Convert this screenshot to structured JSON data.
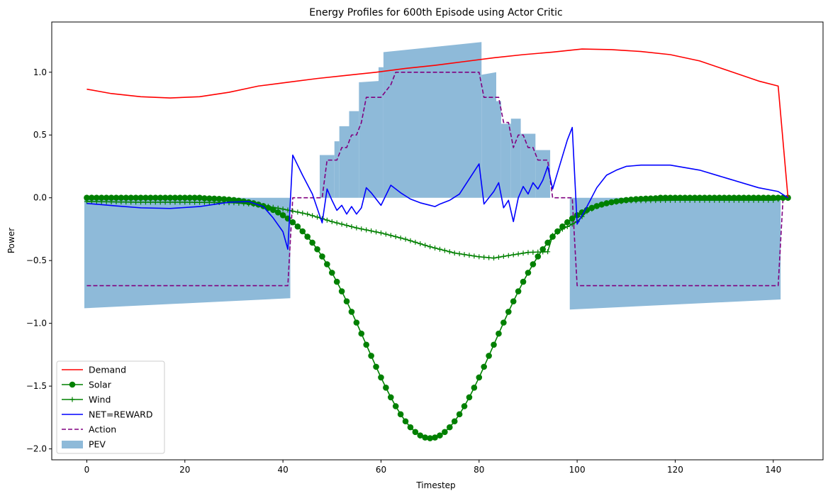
{
  "chart_data": {
    "type": "line",
    "title": "Energy Profiles for 600th Episode using Actor Critic",
    "xlabel": "Timestep",
    "ylabel": "Power",
    "xlim": [
      -7.15,
      150.15
    ],
    "ylim": [
      -2.087,
      1.4
    ],
    "xticks": [
      0,
      20,
      40,
      60,
      80,
      100,
      120,
      140
    ],
    "yticks": [
      -2.0,
      -1.5,
      -1.0,
      -0.5,
      0.0,
      0.5,
      1.0
    ],
    "ytick_labels": [
      "−2.0",
      "−1.5",
      "−1.0",
      "−0.5",
      "0.0",
      "0.5",
      "1.0"
    ],
    "grid": false,
    "legend_position": "lower-left",
    "legend": [
      "Demand",
      "Solar",
      "Wind",
      "NET=REWARD",
      "Action",
      "PEV"
    ],
    "colors": {
      "demand": "#ff0000",
      "solar": "#008000",
      "wind": "#008000",
      "net": "#0000ff",
      "action": "#800080",
      "pev": "#8ebad9"
    },
    "series": [
      {
        "name": "Demand",
        "style": "line",
        "points": [
          [
            0,
            0.865
          ],
          [
            5,
            0.83
          ],
          [
            11,
            0.805
          ],
          [
            17,
            0.795
          ],
          [
            23,
            0.805
          ],
          [
            29,
            0.84
          ],
          [
            35,
            0.89
          ],
          [
            41,
            0.92
          ],
          [
            47,
            0.95
          ],
          [
            53,
            0.975
          ],
          [
            59,
            1.0
          ],
          [
            65,
            1.03
          ],
          [
            71,
            1.055
          ],
          [
            77,
            1.085
          ],
          [
            83,
            1.115
          ],
          [
            89,
            1.14
          ],
          [
            95,
            1.16
          ],
          [
            101,
            1.185
          ],
          [
            107,
            1.18
          ],
          [
            113,
            1.165
          ],
          [
            119,
            1.14
          ],
          [
            125,
            1.09
          ],
          [
            131,
            1.01
          ],
          [
            137,
            0.93
          ],
          [
            141,
            0.89
          ],
          [
            143,
            0.0
          ]
        ]
      },
      {
        "name": "Solar",
        "style": "line-circle",
        "shape": "gaussian",
        "peak_t": 70,
        "peak_value": -1.915,
        "sigma": 13.1,
        "t_start": 0,
        "t_end": 143
      },
      {
        "name": "Wind",
        "style": "line-plus",
        "points": [
          [
            0,
            -0.03
          ],
          [
            10,
            -0.035
          ],
          [
            20,
            -0.035
          ],
          [
            30,
            -0.04
          ],
          [
            35,
            -0.055
          ],
          [
            40,
            -0.09
          ],
          [
            45,
            -0.13
          ],
          [
            50,
            -0.19
          ],
          [
            55,
            -0.24
          ],
          [
            60,
            -0.28
          ],
          [
            65,
            -0.33
          ],
          [
            70,
            -0.39
          ],
          [
            75,
            -0.44
          ],
          [
            80,
            -0.47
          ],
          [
            83,
            -0.48
          ],
          [
            86,
            -0.46
          ],
          [
            90,
            -0.435
          ],
          [
            94,
            -0.43
          ],
          [
            95,
            -0.3
          ],
          [
            97,
            -0.25
          ],
          [
            100,
            -0.19
          ],
          [
            102,
            -0.11
          ],
          [
            105,
            -0.05
          ],
          [
            110,
            -0.025
          ],
          [
            120,
            -0.02
          ],
          [
            130,
            -0.02
          ],
          [
            140,
            -0.02
          ],
          [
            143,
            0.0
          ]
        ]
      },
      {
        "name": "NET=REWARD",
        "style": "line",
        "points": [
          [
            0,
            -0.045
          ],
          [
            6,
            -0.065
          ],
          [
            11,
            -0.08
          ],
          [
            17,
            -0.085
          ],
          [
            23,
            -0.07
          ],
          [
            29,
            -0.035
          ],
          [
            33,
            -0.03
          ],
          [
            36,
            -0.07
          ],
          [
            38,
            -0.16
          ],
          [
            40,
            -0.27
          ],
          [
            41,
            -0.41
          ],
          [
            42,
            0.34
          ],
          [
            44,
            0.18
          ],
          [
            46,
            0.03
          ],
          [
            48,
            -0.2
          ],
          [
            49,
            0.07
          ],
          [
            50,
            -0.02
          ],
          [
            51,
            -0.1
          ],
          [
            52,
            -0.06
          ],
          [
            53,
            -0.13
          ],
          [
            54,
            -0.07
          ],
          [
            55,
            -0.13
          ],
          [
            56,
            -0.08
          ],
          [
            57,
            0.08
          ],
          [
            58,
            0.04
          ],
          [
            60,
            -0.06
          ],
          [
            62,
            0.1
          ],
          [
            64,
            0.04
          ],
          [
            66,
            -0.01
          ],
          [
            68,
            -0.04
          ],
          [
            70,
            -0.06
          ],
          [
            71,
            -0.07
          ],
          [
            72,
            -0.05
          ],
          [
            74,
            -0.02
          ],
          [
            76,
            0.03
          ],
          [
            78,
            0.15
          ],
          [
            80,
            0.27
          ],
          [
            81,
            -0.05
          ],
          [
            83,
            0.05
          ],
          [
            84,
            0.12
          ],
          [
            85,
            -0.08
          ],
          [
            86,
            -0.02
          ],
          [
            87,
            -0.19
          ],
          [
            88,
            0.0
          ],
          [
            89,
            0.09
          ],
          [
            90,
            0.03
          ],
          [
            91,
            0.12
          ],
          [
            92,
            0.07
          ],
          [
            93,
            0.14
          ],
          [
            94,
            0.25
          ],
          [
            95,
            0.07
          ],
          [
            96,
            0.2
          ],
          [
            97,
            0.33
          ],
          [
            98,
            0.46
          ],
          [
            99,
            0.56
          ],
          [
            100,
            -0.21
          ],
          [
            102,
            -0.07
          ],
          [
            104,
            0.08
          ],
          [
            106,
            0.18
          ],
          [
            108,
            0.22
          ],
          [
            110,
            0.25
          ],
          [
            113,
            0.26
          ],
          [
            119,
            0.26
          ],
          [
            125,
            0.22
          ],
          [
            131,
            0.15
          ],
          [
            137,
            0.08
          ],
          [
            141,
            0.05
          ],
          [
            143,
            0.0
          ]
        ]
      },
      {
        "name": "Action",
        "style": "dashed",
        "points": [
          [
            0,
            -0.7
          ],
          [
            41,
            -0.7
          ],
          [
            42,
            0.0
          ],
          [
            48,
            0.0
          ],
          [
            49,
            0.3
          ],
          [
            51,
            0.3
          ],
          [
            52,
            0.4
          ],
          [
            53,
            0.4
          ],
          [
            54,
            0.5
          ],
          [
            55,
            0.5
          ],
          [
            56,
            0.6
          ],
          [
            57,
            0.8
          ],
          [
            60,
            0.8
          ],
          [
            62,
            0.9
          ],
          [
            63,
            1.0
          ],
          [
            80,
            1.0
          ],
          [
            81,
            0.8
          ],
          [
            84,
            0.8
          ],
          [
            85,
            0.6
          ],
          [
            86,
            0.6
          ],
          [
            87,
            0.4
          ],
          [
            88,
            0.5
          ],
          [
            89,
            0.5
          ],
          [
            90,
            0.4
          ],
          [
            91,
            0.4
          ],
          [
            92,
            0.3
          ],
          [
            94,
            0.3
          ],
          [
            95,
            0.0
          ],
          [
            99,
            0.0
          ],
          [
            100,
            -0.7
          ],
          [
            141,
            -0.7
          ],
          [
            142,
            0.0
          ],
          [
            143,
            0.0
          ]
        ]
      },
      {
        "name": "PEV",
        "style": "bar",
        "width": 1,
        "bars": [
          {
            "t0": -0.5,
            "t1": 41.5,
            "v0": -0.88,
            "v1": -0.8
          },
          {
            "t0": 47.5,
            "t1": 50.5,
            "v0": 0.34,
            "v1": 0.34
          },
          {
            "t0": 50.5,
            "t1": 51.5,
            "v0": 0.45,
            "v1": 0.45
          },
          {
            "t0": 51.5,
            "t1": 53.5,
            "v0": 0.57,
            "v1": 0.57
          },
          {
            "t0": 53.5,
            "t1": 55.5,
            "v0": 0.69,
            "v1": 0.69
          },
          {
            "t0": 55.5,
            "t1": 59.5,
            "v0": 0.92,
            "v1": 0.93
          },
          {
            "t0": 59.5,
            "t1": 60.5,
            "v0": 1.04,
            "v1": 1.04
          },
          {
            "t0": 60.5,
            "t1": 80.5,
            "v0": 1.16,
            "v1": 1.24
          },
          {
            "t0": 80.5,
            "t1": 83.5,
            "v0": 0.98,
            "v1": 1.0
          },
          {
            "t0": 83.5,
            "t1": 84.5,
            "v0": 0.77,
            "v1": 0.77
          },
          {
            "t0": 84.5,
            "t1": 86.5,
            "v0": 0.59,
            "v1": 0.59
          },
          {
            "t0": 86.5,
            "t1": 88.5,
            "v0": 0.63,
            "v1": 0.63
          },
          {
            "t0": 88.5,
            "t1": 91.5,
            "v0": 0.51,
            "v1": 0.51
          },
          {
            "t0": 91.5,
            "t1": 94.5,
            "v0": 0.38,
            "v1": 0.38
          },
          {
            "t0": 98.5,
            "t1": 141.5,
            "v0": -0.89,
            "v1": -0.81
          }
        ]
      }
    ]
  }
}
